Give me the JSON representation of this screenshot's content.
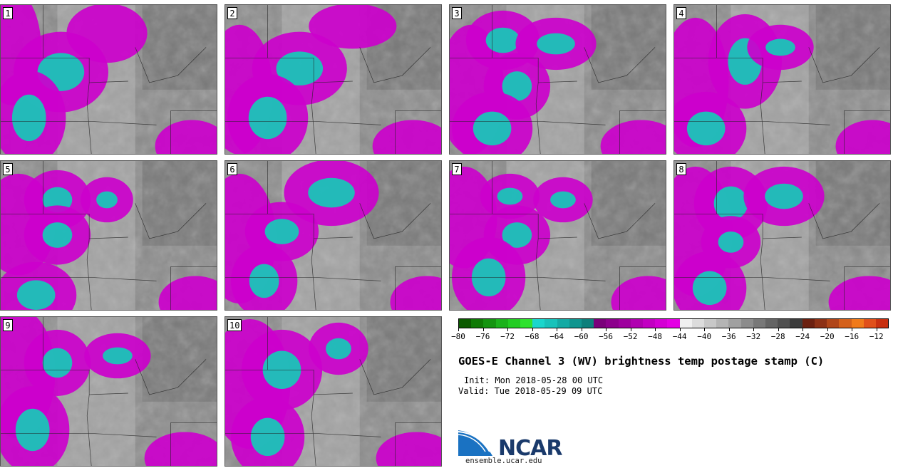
{
  "title": "GOES-E Channel 3 (WV) brightness temp postage stamp (C)",
  "init_text": "Init: Mon 2018-05-28 00 UTC",
  "valid_text": "Valid: Tue 2018-05-29 09 UTC",
  "logo_text": "NCAR",
  "logo_url": "ensemble.ucar.edu",
  "stamps": [
    {
      "label": "1"
    },
    {
      "label": "2"
    },
    {
      "label": "3"
    },
    {
      "label": "4"
    },
    {
      "label": "5"
    },
    {
      "label": "6"
    },
    {
      "label": "7"
    },
    {
      "label": "8"
    },
    {
      "label": "9"
    },
    {
      "label": "10"
    }
  ],
  "colorbar": {
    "ticks": [
      "−80",
      "−76",
      "−72",
      "−68",
      "−64",
      "−60",
      "−56",
      "−52",
      "−48",
      "−44",
      "−40",
      "−36",
      "−32",
      "−28",
      "−24",
      "−20",
      "−16",
      "−12"
    ],
    "colors": [
      "#0b5a00",
      "#0f7a05",
      "#149410",
      "#1bb21b",
      "#22cc22",
      "#2ee22e",
      "#1ad6cc",
      "#18c2ba",
      "#14aaa4",
      "#10958f",
      "#0d7f7b",
      "#7a007a",
      "#8c008c",
      "#9e009e",
      "#b000b0",
      "#c200c2",
      "#d400d4",
      "#e400e4",
      "#f0f0f0",
      "#dcdcdc",
      "#c8c8c8",
      "#b4b4b4",
      "#a0a0a0",
      "#8c8c8c",
      "#787878",
      "#646464",
      "#505050",
      "#3c3c3c",
      "#6b2010",
      "#8c3015",
      "#b04518",
      "#d4601a",
      "#f07a1a",
      "#e0501a",
      "#c83010"
    ]
  }
}
